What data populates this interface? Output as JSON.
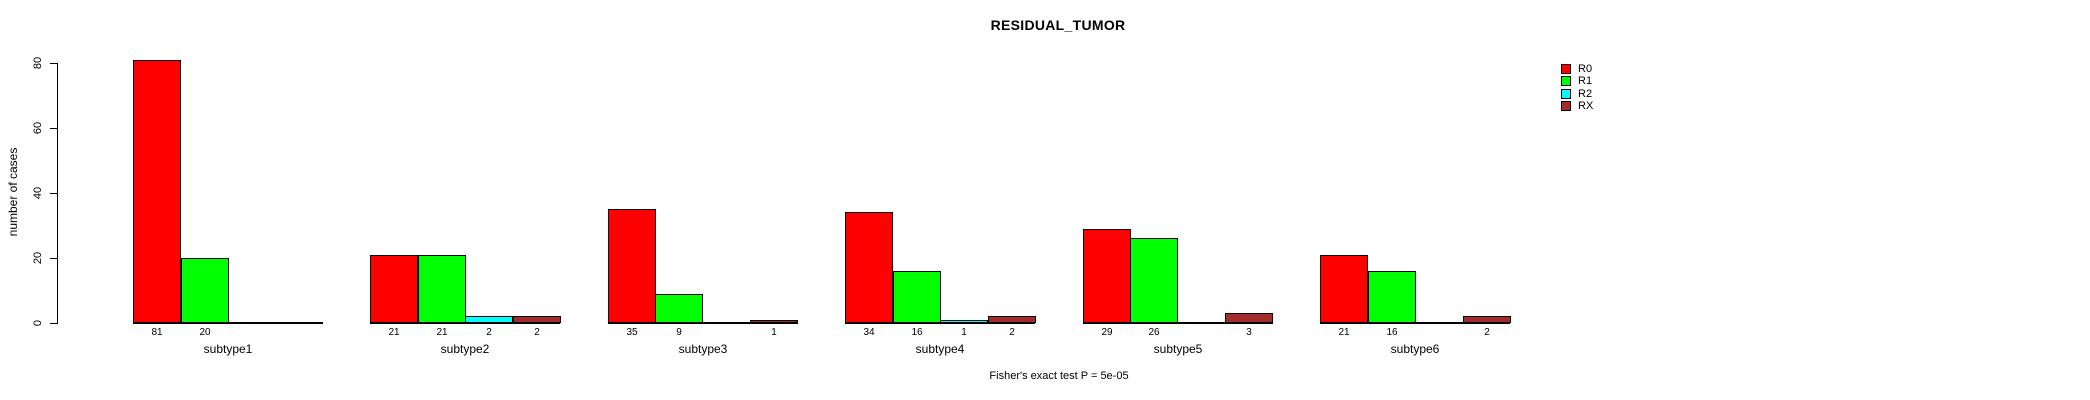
{
  "chart_data": {
    "type": "bar",
    "title": "RESIDUAL_TUMOR",
    "ylabel": "number of cases",
    "footer": "Fisher's exact test P = 5e-05",
    "categories": [
      "subtype1",
      "subtype2",
      "subtype3",
      "subtype4",
      "subtype5",
      "subtype6"
    ],
    "series": [
      {
        "name": "R0",
        "color": "#FF0000",
        "values": [
          81,
          21,
          35,
          34,
          29,
          21
        ]
      },
      {
        "name": "R1",
        "color": "#00FF00",
        "values": [
          20,
          21,
          9,
          16,
          26,
          16
        ]
      },
      {
        "name": "R2",
        "color": "#00FFFF",
        "values": [
          0,
          2,
          0,
          1,
          0,
          0
        ]
      },
      {
        "name": "RX",
        "color": "#A52A2A",
        "values": [
          0,
          2,
          1,
          2,
          3,
          2
        ]
      }
    ],
    "yticks": [
      0,
      20,
      40,
      60,
      80
    ],
    "ylim": [
      0,
      85
    ],
    "grid": false,
    "legend_position": "top-right",
    "value_labels_shown_for_nonzero_only": true,
    "bar_border_color": "#000000",
    "background_color": "#FFFFFF"
  }
}
